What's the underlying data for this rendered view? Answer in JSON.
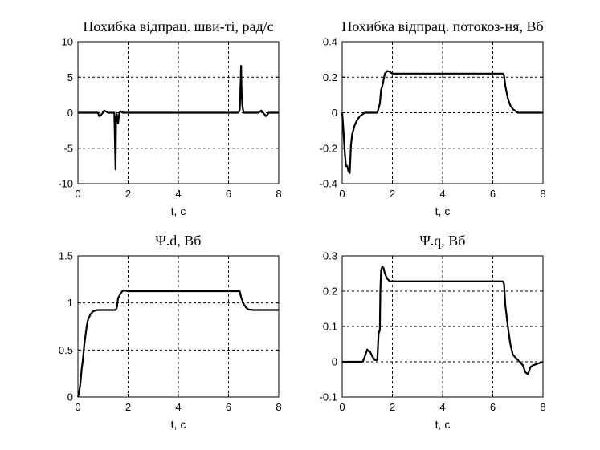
{
  "chart_data": [
    {
      "type": "line",
      "title": "Похибка відпрац. шви-ті, рад/с",
      "xlabel": "t, c",
      "ylabel": "",
      "xlim": [
        0,
        8
      ],
      "ylim": [
        -10,
        10
      ],
      "xticks": [
        0,
        2,
        4,
        6,
        8
      ],
      "yticks": [
        -10,
        -5,
        0,
        5,
        10
      ],
      "xticklabels": [
        "0",
        "2",
        "4",
        "6",
        "8"
      ],
      "yticklabels": [
        "-10",
        "-5",
        "0",
        "5",
        "10"
      ],
      "grid": true,
      "series": [
        {
          "x": [
            0,
            0.8,
            0.85,
            0.95,
            1.05,
            1.1,
            1.2,
            1.3,
            1.45,
            1.5,
            1.52,
            1.55,
            1.6,
            1.65,
            1.7,
            1.8,
            2.0,
            6.4,
            6.45,
            6.5,
            6.52,
            6.55,
            6.6,
            6.7,
            7.0,
            7.2,
            7.3,
            7.4,
            7.5,
            7.6,
            8
          ],
          "y": [
            0,
            0,
            -0.5,
            -0.2,
            0.3,
            0.2,
            0,
            0,
            0,
            -8,
            -0.5,
            -0.2,
            -1.5,
            0,
            0.2,
            0,
            0,
            0,
            0.5,
            6.6,
            3,
            1,
            0,
            0,
            0,
            0,
            0.3,
            -0.1,
            -0.5,
            0,
            0
          ]
        }
      ]
    },
    {
      "type": "line",
      "title": "Похибка відпрац. потокоз-ня, Вб",
      "xlabel": "t, c",
      "ylabel": "",
      "xlim": [
        0,
        8
      ],
      "ylim": [
        -0.4,
        0.4
      ],
      "xticks": [
        0,
        2,
        4,
        6,
        8
      ],
      "yticks": [
        -0.4,
        -0.2,
        0,
        0.2,
        0.4
      ],
      "xticklabels": [
        "0",
        "2",
        "4",
        "6",
        "8"
      ],
      "yticklabels": [
        "-0.4",
        "-0.2",
        "0",
        "0.2",
        "0.4"
      ],
      "grid": true,
      "series": [
        {
          "x": [
            0,
            0.05,
            0.1,
            0.15,
            0.2,
            0.25,
            0.3,
            0.35,
            0.4,
            0.5,
            0.6,
            0.7,
            0.8,
            0.9,
            1.0,
            1.2,
            1.4,
            1.5,
            1.55,
            1.6,
            1.7,
            1.8,
            1.9,
            2.0,
            6.3,
            6.4,
            6.45,
            6.5,
            6.6,
            6.7,
            6.8,
            6.9,
            7.0,
            8
          ],
          "y": [
            0,
            -0.1,
            -0.22,
            -0.3,
            -0.3,
            -0.33,
            -0.34,
            -0.18,
            -0.12,
            -0.07,
            -0.04,
            -0.02,
            -0.01,
            0,
            0,
            0,
            0,
            0.05,
            0.13,
            0.15,
            0.22,
            0.235,
            0.23,
            0.22,
            0.22,
            0.22,
            0.21,
            0.15,
            0.08,
            0.04,
            0.02,
            0.01,
            0,
            0
          ]
        }
      ]
    },
    {
      "type": "line",
      "title": "Ψ.d, Вб",
      "xlabel": "t, c",
      "ylabel": "",
      "xlim": [
        0,
        8
      ],
      "ylim": [
        0,
        1.5
      ],
      "xticks": [
        0,
        2,
        4,
        6,
        8
      ],
      "yticks": [
        0,
        0.5,
        1,
        1.5
      ],
      "xticklabels": [
        "0",
        "2",
        "4",
        "6",
        "8"
      ],
      "yticklabels": [
        "0",
        "0.5",
        "1",
        "1.5"
      ],
      "grid": true,
      "series": [
        {
          "x": [
            0,
            0.05,
            0.1,
            0.15,
            0.2,
            0.25,
            0.3,
            0.35,
            0.4,
            0.5,
            0.6,
            0.7,
            0.8,
            1.0,
            1.2,
            1.5,
            1.55,
            1.6,
            1.7,
            1.8,
            1.9,
            2.0,
            6.3,
            6.4,
            6.45,
            6.5,
            6.6,
            6.7,
            6.8,
            7.0,
            8
          ],
          "y": [
            0,
            0.05,
            0.15,
            0.3,
            0.4,
            0.55,
            0.65,
            0.75,
            0.82,
            0.88,
            0.91,
            0.92,
            0.925,
            0.925,
            0.925,
            0.925,
            0.95,
            1.05,
            1.1,
            1.135,
            1.13,
            1.125,
            1.125,
            1.125,
            1.12,
            1.06,
            0.99,
            0.95,
            0.93,
            0.925,
            0.925
          ]
        }
      ]
    },
    {
      "type": "line",
      "title": "Ψ.q, Вб",
      "xlabel": "t, c",
      "ylabel": "",
      "xlim": [
        0,
        8
      ],
      "ylim": [
        -0.1,
        0.3
      ],
      "xticks": [
        0,
        2,
        4,
        6,
        8
      ],
      "yticks": [
        -0.1,
        0,
        0.1,
        0.2,
        0.3
      ],
      "xticklabels": [
        "0",
        "2",
        "4",
        "6",
        "8"
      ],
      "yticklabels": [
        "-0.1",
        "0",
        "0.1",
        "0.2",
        "0.3"
      ],
      "grid": true,
      "series": [
        {
          "x": [
            0,
            0.8,
            0.85,
            0.9,
            0.95,
            1.0,
            1.05,
            1.1,
            1.2,
            1.3,
            1.4,
            1.45,
            1.5,
            1.52,
            1.55,
            1.6,
            1.65,
            1.7,
            1.8,
            1.9,
            2.0,
            6.3,
            6.4,
            6.45,
            6.5,
            6.6,
            6.7,
            6.8,
            7.0,
            7.2,
            7.3,
            7.4,
            7.5,
            7.6,
            7.8,
            8
          ],
          "y": [
            0,
            0,
            0.005,
            0.015,
            0.025,
            0.035,
            0.03,
            0.03,
            0.015,
            0.005,
            0.005,
            0.08,
            0.09,
            0.2,
            0.26,
            0.27,
            0.265,
            0.25,
            0.235,
            0.228,
            0.228,
            0.228,
            0.228,
            0.22,
            0.16,
            0.1,
            0.05,
            0.02,
            0.005,
            -0.01,
            -0.03,
            -0.035,
            -0.015,
            -0.01,
            -0.005,
            0
          ]
        }
      ]
    }
  ]
}
